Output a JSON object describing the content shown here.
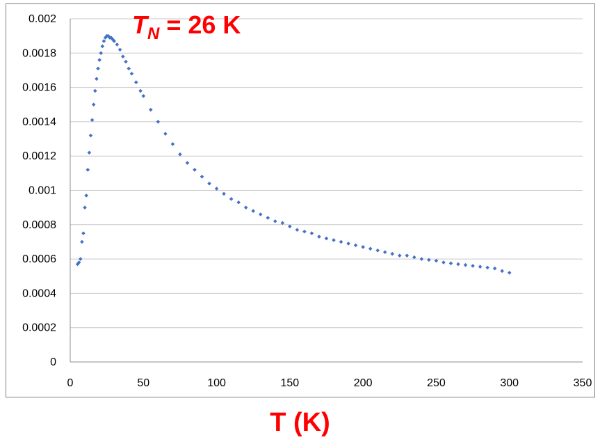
{
  "chart_data": {
    "type": "scatter",
    "title": "",
    "xlabel": "T (K)",
    "ylabel": "",
    "xlim": [
      0,
      350
    ],
    "ylim": [
      0,
      0.002
    ],
    "xticks": [
      "0",
      "50",
      "100",
      "150",
      "200",
      "250",
      "300",
      "350"
    ],
    "yticks": [
      "0",
      "0.0002",
      "0.0004",
      "0.0006",
      "0.0008",
      "0.001",
      "0.0012",
      "0.0014",
      "0.0016",
      "0.0018",
      "0.002"
    ],
    "grid": "horizontal",
    "legend": "none",
    "marker_color": "#4472c4",
    "annotation": {
      "symbol": "T",
      "subscript": "N",
      "text": " = 26 K",
      "color": "#ff0000"
    },
    "series": [
      {
        "x": [
          5,
          6,
          7,
          8,
          9,
          10,
          11,
          12,
          13,
          14,
          15,
          16,
          17,
          18,
          19,
          20,
          21,
          22,
          23,
          24,
          25,
          26,
          27,
          28,
          29,
          30,
          32,
          34,
          36,
          38,
          40,
          42,
          45,
          48,
          50,
          55,
          60,
          65,
          70,
          75,
          80,
          85,
          90,
          95,
          100,
          105,
          110,
          115,
          120,
          125,
          130,
          135,
          140,
          145,
          150,
          155,
          160,
          165,
          170,
          175,
          180,
          185,
          190,
          195,
          200,
          205,
          210,
          215,
          220,
          225,
          230,
          235,
          240,
          245,
          250,
          255,
          260,
          265,
          270,
          275,
          280,
          285,
          290,
          295,
          300
        ],
        "y": [
          0.00057,
          0.00058,
          0.0006,
          0.0007,
          0.00075,
          0.0009,
          0.00097,
          0.00112,
          0.00122,
          0.00132,
          0.00141,
          0.0015,
          0.00158,
          0.00165,
          0.00171,
          0.00176,
          0.0018,
          0.00184,
          0.00187,
          0.00189,
          0.0019,
          0.0019,
          0.00189,
          0.00189,
          0.00188,
          0.00187,
          0.00185,
          0.00182,
          0.00178,
          0.00175,
          0.00171,
          0.00168,
          0.00163,
          0.00158,
          0.00155,
          0.00147,
          0.0014,
          0.00133,
          0.00127,
          0.00121,
          0.00116,
          0.00112,
          0.00108,
          0.00104,
          0.00101,
          0.00098,
          0.00095,
          0.00093,
          0.0009,
          0.00088,
          0.00086,
          0.00084,
          0.00082,
          0.00081,
          0.00079,
          0.00077,
          0.00076,
          0.00075,
          0.00073,
          0.00072,
          0.00071,
          0.0007,
          0.00069,
          0.00068,
          0.00067,
          0.00066,
          0.00065,
          0.00064,
          0.00063,
          0.00062,
          0.00062,
          0.00061,
          0.0006,
          0.000595,
          0.00059,
          0.00058,
          0.000575,
          0.00057,
          0.000565,
          0.00056,
          0.000555,
          0.00055,
          0.000545,
          0.00053,
          0.00052
        ]
      }
    ]
  }
}
